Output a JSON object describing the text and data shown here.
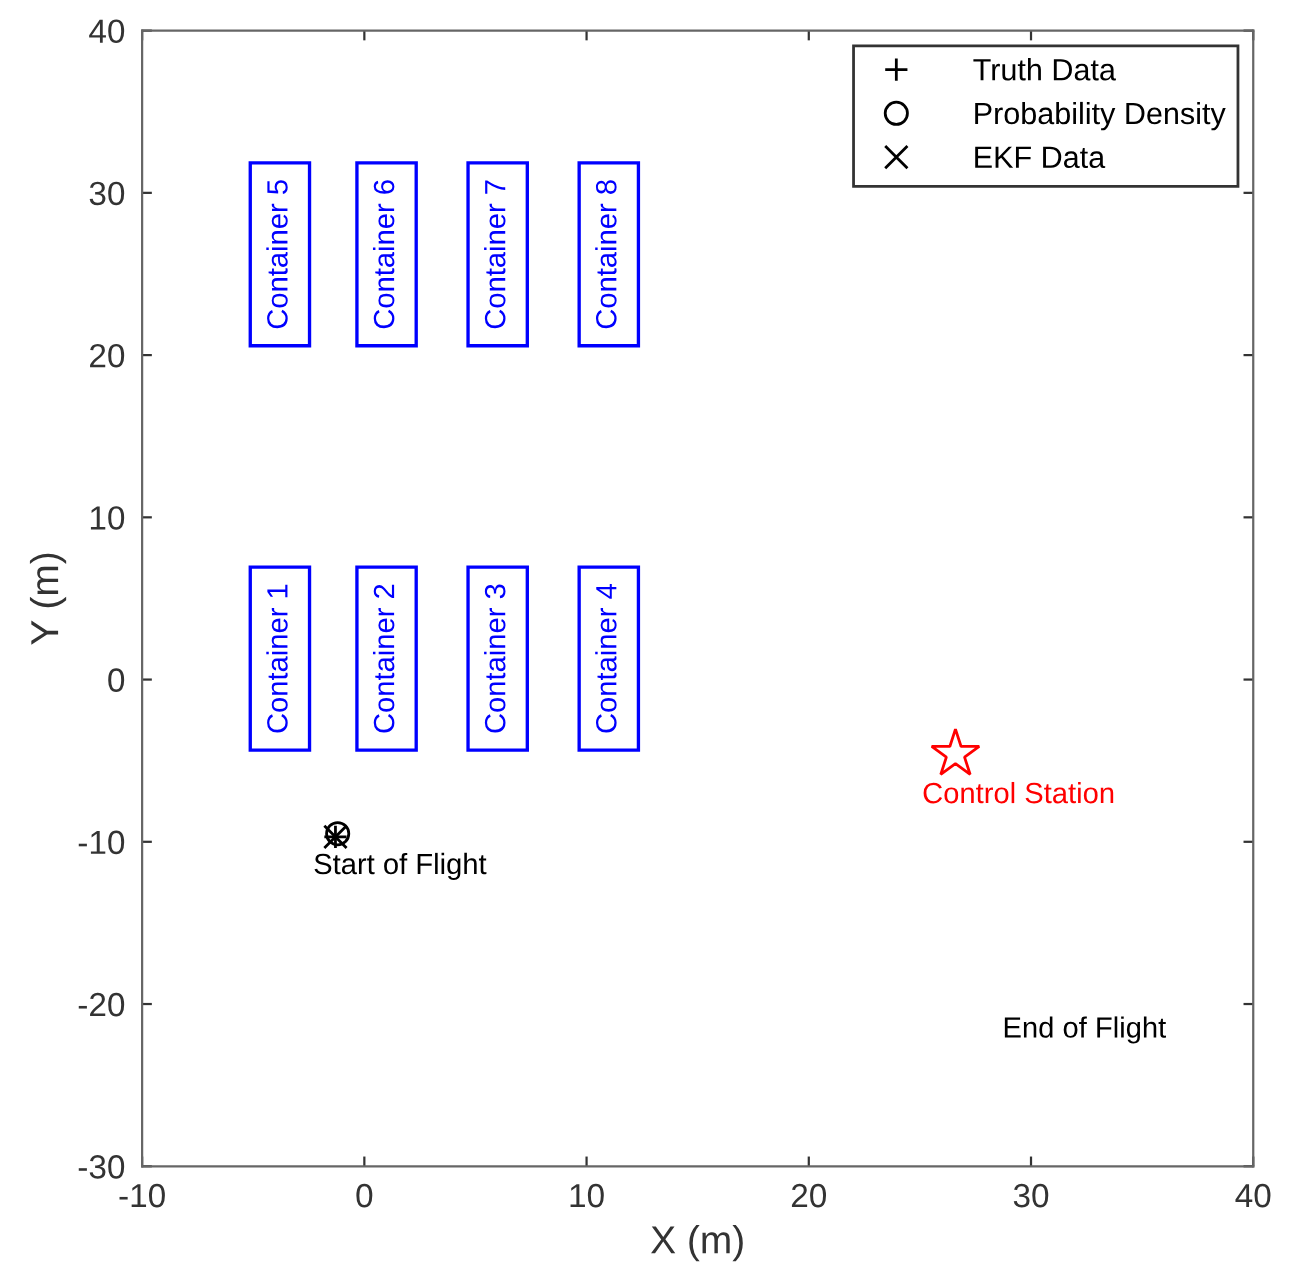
{
  "chart_data": {
    "type": "scatter",
    "xlabel": "X (m)",
    "ylabel": "Y (m)",
    "xlim": [
      -10,
      40
    ],
    "xticks": [
      -10,
      0,
      10,
      20,
      30,
      40
    ],
    "ylim": [
      -30,
      40
    ],
    "yticks": [
      -30,
      -20,
      -10,
      0,
      10,
      20,
      30,
      40
    ],
    "grid": false,
    "legend": "top right",
    "series": [
      {
        "name": "Truth Data",
        "color": "#000000",
        "marker": "plus",
        "x": [
          -1.3
        ],
        "values": [
          -9.7
        ]
      },
      {
        "name": "Probability Density",
        "color": "#000000",
        "marker": "circle",
        "x": [
          -1.2
        ],
        "values": [
          -9.5
        ]
      },
      {
        "name": "EKF Data",
        "color": "#000000",
        "marker": "cross",
        "x": [
          -1.3
        ],
        "values": [
          -9.7
        ]
      },
      {
        "name": "Control Station",
        "color": "#ff0000",
        "marker": "star",
        "x": [
          26.6
        ],
        "values": [
          -4.6
        ]
      }
    ],
    "annotations": [
      "Container 1",
      "Container 2",
      "Container 3",
      "Container 4",
      "Container 5",
      "Container 6",
      "Container 7",
      "Container 8",
      "Start of Flight",
      "End of Flight"
    ]
  }
}
